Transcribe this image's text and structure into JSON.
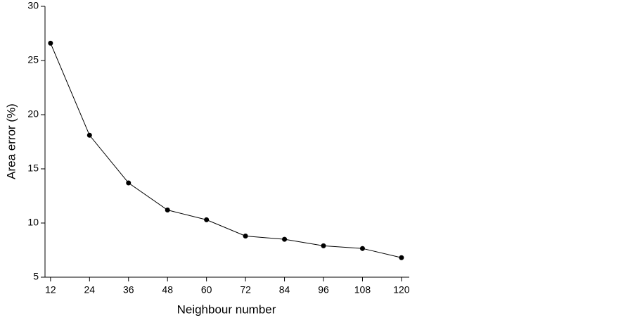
{
  "chart_data": {
    "type": "line",
    "x_label": "Neighbour number",
    "y_label": "Area error (%)",
    "x": [
      12,
      24,
      36,
      48,
      60,
      72,
      84,
      96,
      108,
      120
    ],
    "series": [
      {
        "color": "#000000",
        "values": [
          26.6,
          18.1,
          13.7,
          11.2,
          10.3,
          8.8,
          8.5,
          7.9,
          7.65,
          6.8
        ]
      }
    ],
    "xlim": [
      10.3,
      122.4
    ],
    "xticks": [
      12,
      24,
      36,
      48,
      60,
      72,
      84,
      96,
      108,
      120
    ],
    "ylim": [
      5,
      30
    ],
    "yticks": [
      5,
      10,
      15,
      20,
      25,
      30
    ],
    "grid": false
  }
}
